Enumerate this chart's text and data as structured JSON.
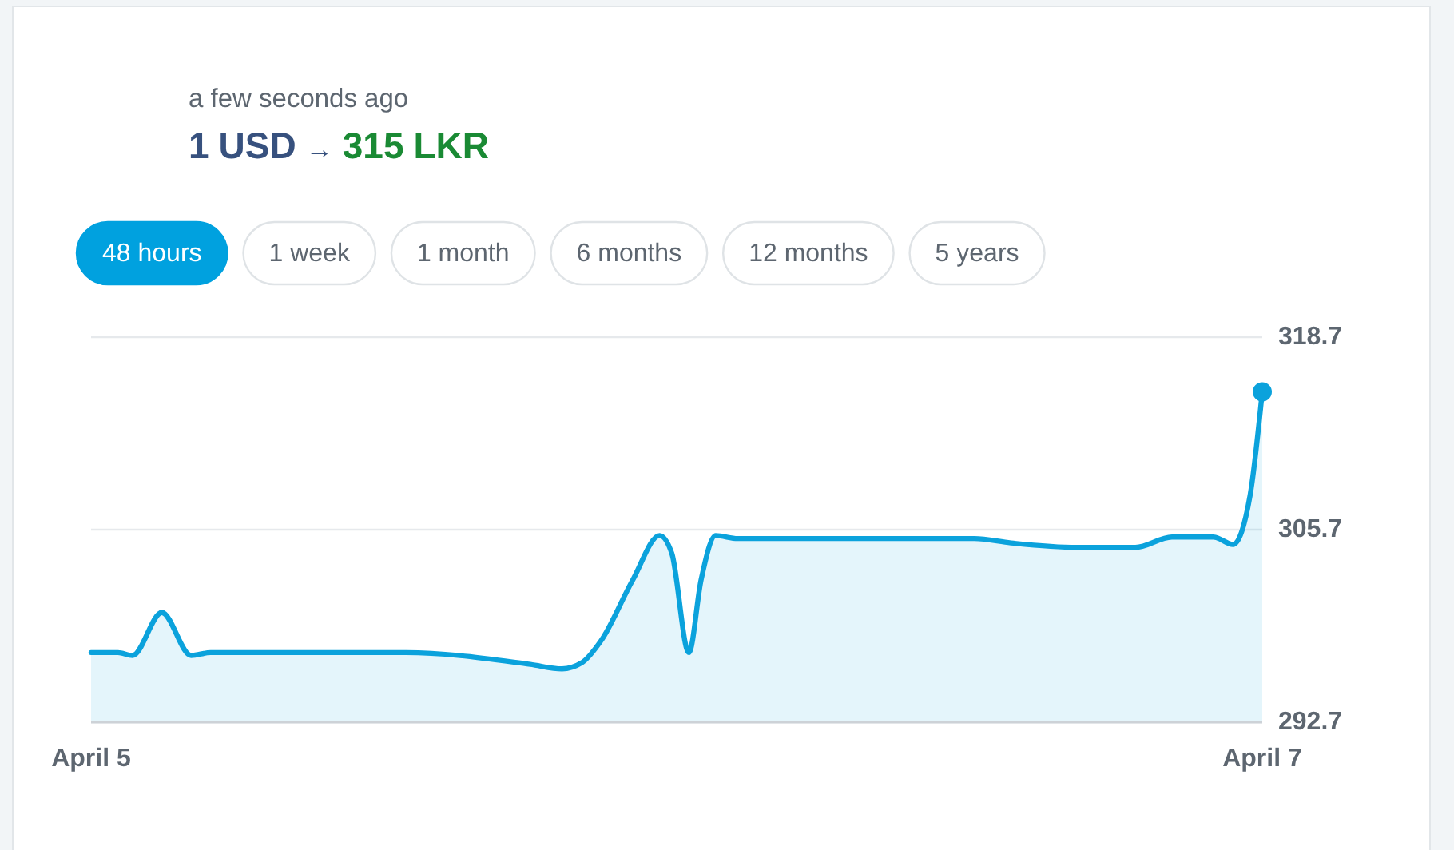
{
  "chart_data": {
    "type": "area",
    "title": "1 USD → 315 LKR",
    "subtitle": "a few seconds ago",
    "annotations": [
      "48 hours",
      "1 week",
      "1 month",
      "6 months",
      "12 months",
      "5 years"
    ],
    "xlim": [
      "--04-05",
      "--04-07"
    ],
    "xticks": [
      {
        "value": "--04-05",
        "label": "April 5"
      },
      {
        "value": "--04-07",
        "label": "April 7"
      }
    ],
    "ylim": [
      292.7,
      318.7
    ],
    "yticks": [
      292.7,
      305.7,
      318.7
    ],
    "grid": "y",
    "series": [
      {
        "color": "#0ba2dc",
        "x": [
          "--04-05T00:00",
          "--04-05T01:06",
          "--04-05T01:42",
          "--04-05T02:54",
          "--04-05T04:06",
          "--04-05T04:54",
          "--04-05T12:54",
          "--04-05T18:00",
          "--04-05T19:18",
          "--04-05T20:06",
          "--04-05T20:54",
          "--04-05T22:12",
          "--04-05T23:18",
          "--04-05T23:48",
          "--04-06T00:30",
          "--04-06T01:00",
          "--04-06T01:36",
          "--04-06T02:30",
          "--04-06T12:12",
          "--04-06T13:42",
          "--04-06T16:24",
          "--04-06T18:48",
          "--04-06T20:18",
          "--04-06T22:00",
          "--04-06T22:48",
          "--04-06T23:30",
          "--04-07T00:00"
        ],
        "values": [
          297.4,
          297.4,
          297.2,
          300.1,
          297.2,
          297.4,
          297.4,
          296.6,
          296.3,
          296.7,
          298.2,
          302.3,
          305.3,
          304.1,
          297.4,
          302.3,
          305.3,
          305.1,
          305.1,
          304.8,
          304.5,
          304.5,
          305.2,
          305.2,
          304.7,
          308.0,
          315
        ]
      },
      {
        "type": "scatter",
        "color": "#0ba2dc",
        "marker": "circle",
        "x": [
          "--04-07T00:00"
        ],
        "values": [
          315
        ]
      }
    ]
  }
}
